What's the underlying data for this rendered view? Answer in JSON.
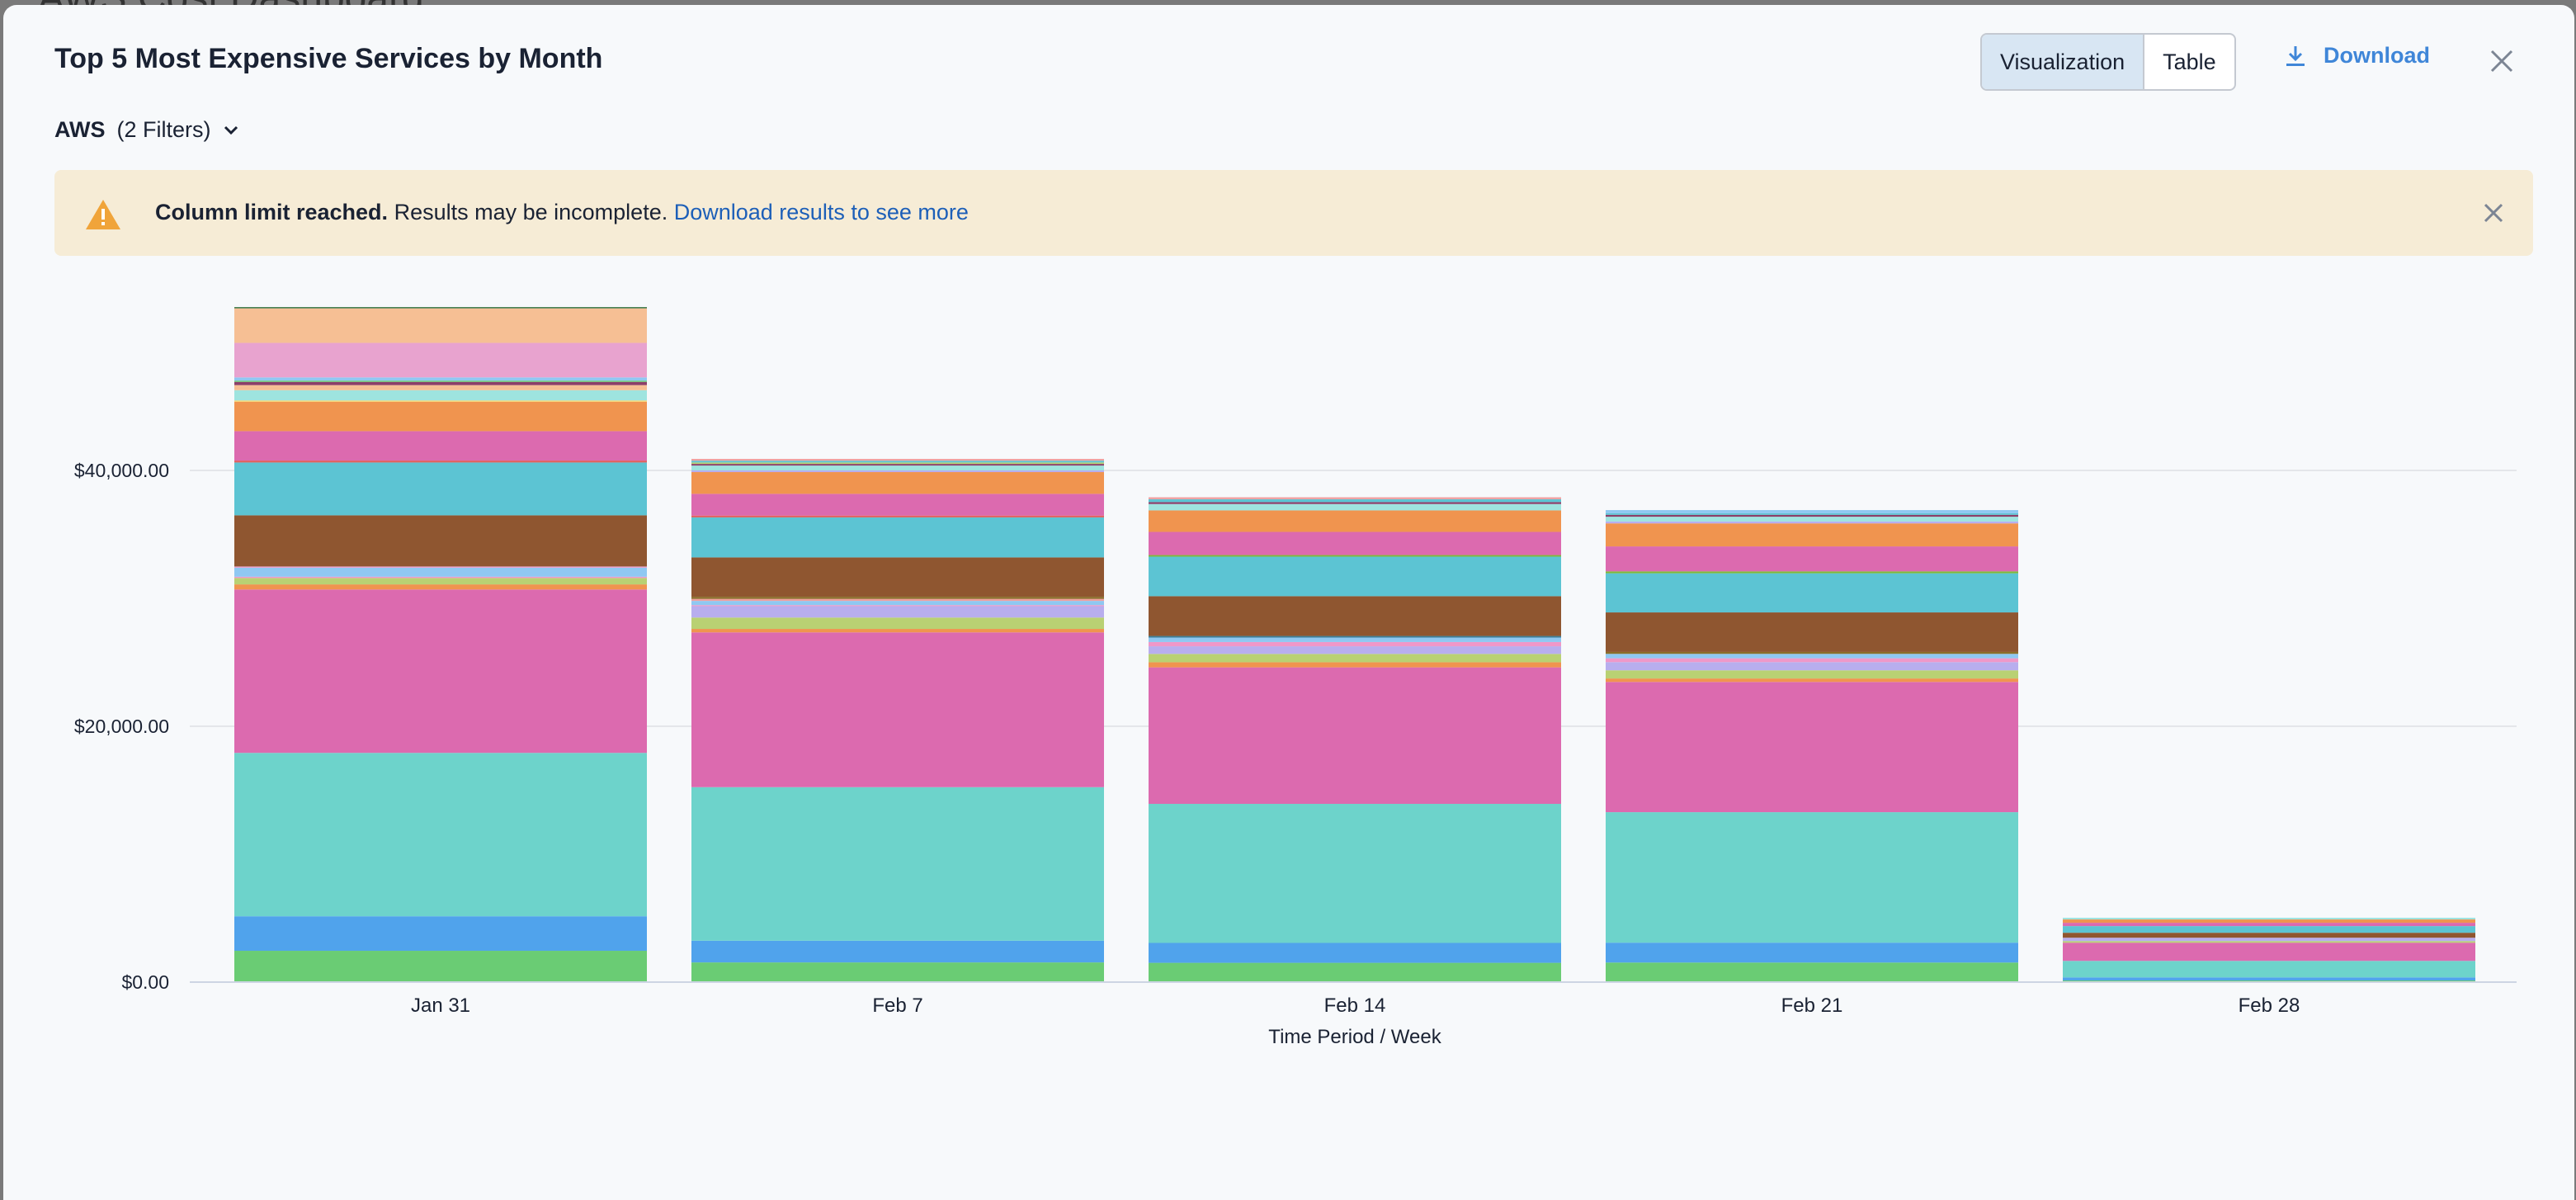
{
  "backdrop": {
    "title": "AWS Cost Dashboard"
  },
  "header": {
    "title": "Top 5 Most Expensive Services by Month",
    "view_options": [
      "Visualization",
      "Table"
    ],
    "active_view": "Visualization",
    "download_label": "Download",
    "download_icon": "download-icon",
    "close_icon": "close-icon"
  },
  "filter": {
    "source": "AWS",
    "count_label": "(2 Filters)",
    "icon": "chevron-down-icon"
  },
  "banner": {
    "icon": "warning-icon",
    "bold": "Column limit reached.",
    "text": " Results may be incomplete. ",
    "link": "Download results to see more",
    "background": "#f6ecd6"
  },
  "chart_data": {
    "type": "bar",
    "stacked": true,
    "xlabel": "Time Period / Week",
    "ylabel": "",
    "ylim": [
      0,
      55000
    ],
    "yticks": [
      "$0.00",
      "$20,000.00",
      "$40,000.00"
    ],
    "ytick_values": [
      0,
      20000,
      40000
    ],
    "grid": true,
    "legend": "none",
    "categories": [
      "Jan 31",
      "Feb 7",
      "Feb 14",
      "Feb 21",
      "Feb 28"
    ],
    "stacks": [
      {
        "category": "Jan 31",
        "segments": [
          {
            "color": "#6acc74",
            "value": 2450
          },
          {
            "color": "#50a3ec",
            "value": 2700
          },
          {
            "color": "#6dd3cb",
            "value": 12770
          },
          {
            "color": "#dc6aaf",
            "value": 12770
          },
          {
            "color": "#f0944f",
            "value": 400
          },
          {
            "color": "#b9d173",
            "value": 500
          },
          {
            "color": "#ef98c8",
            "value": 100
          },
          {
            "color": "#8fc8f2",
            "value": 700
          },
          {
            "color": "#e8a3cf",
            "value": 100
          },
          {
            "color": "#8f5630",
            "value": 4000
          },
          {
            "color": "#5cc4d3",
            "value": 4130
          },
          {
            "color": "#e0605f",
            "value": 150
          },
          {
            "color": "#dc6aaf",
            "value": 2300
          },
          {
            "color": "#f0944f",
            "value": 2300
          },
          {
            "color": "#f6d56f",
            "value": 100
          },
          {
            "color": "#9ee4df",
            "value": 800
          },
          {
            "color": "#f6bf94",
            "value": 400
          },
          {
            "color": "#8b3f6a",
            "value": 250
          },
          {
            "color": "#6acc74",
            "value": 100
          },
          {
            "color": "#8fc8f2",
            "value": 250
          },
          {
            "color": "#e8a3cf",
            "value": 2700
          },
          {
            "color": "#f6bf94",
            "value": 2700
          },
          {
            "color": "#3e7a4a",
            "value": 100
          }
        ]
      },
      {
        "category": "Feb 7",
        "segments": [
          {
            "color": "#6acc74",
            "value": 1540
          },
          {
            "color": "#50a3ec",
            "value": 1700
          },
          {
            "color": "#6dd3cb",
            "value": 12000
          },
          {
            "color": "#dc6aaf",
            "value": 12100
          },
          {
            "color": "#f0944f",
            "value": 270
          },
          {
            "color": "#b9d173",
            "value": 890
          },
          {
            "color": "#b8aeee",
            "value": 890
          },
          {
            "color": "#ef98c8",
            "value": 80
          },
          {
            "color": "#8fc8f2",
            "value": 330
          },
          {
            "color": "#ef9f9f",
            "value": 160
          },
          {
            "color": "#8a6e2a",
            "value": 160
          },
          {
            "color": "#8f5630",
            "value": 3080
          },
          {
            "color": "#5cc4d3",
            "value": 3130
          },
          {
            "color": "#e0605f",
            "value": 140
          },
          {
            "color": "#dc6aaf",
            "value": 1700
          },
          {
            "color": "#f0944f",
            "value": 1700
          },
          {
            "color": "#b8aeee",
            "value": 130
          },
          {
            "color": "#9ee4df",
            "value": 380
          },
          {
            "color": "#8b3f6a",
            "value": 130
          },
          {
            "color": "#b9d173",
            "value": 110
          },
          {
            "color": "#5cc4d3",
            "value": 140
          },
          {
            "color": "#ef9f9f",
            "value": 140
          }
        ]
      },
      {
        "category": "Feb 14",
        "segments": [
          {
            "color": "#6acc74",
            "value": 1510
          },
          {
            "color": "#50a3ec",
            "value": 1555
          },
          {
            "color": "#6dd3cb",
            "value": 10870
          },
          {
            "color": "#dc6aaf",
            "value": 10670
          },
          {
            "color": "#f0944f",
            "value": 400
          },
          {
            "color": "#b9d173",
            "value": 650
          },
          {
            "color": "#b8aeee",
            "value": 600
          },
          {
            "color": "#ef98c8",
            "value": 330
          },
          {
            "color": "#8fc8f2",
            "value": 350
          },
          {
            "color": "#3d7f96",
            "value": 125
          },
          {
            "color": "#8f5630",
            "value": 3110
          },
          {
            "color": "#5cc4d3",
            "value": 3090
          },
          {
            "color": "#7fb83a",
            "value": 125
          },
          {
            "color": "#dc6aaf",
            "value": 1810
          },
          {
            "color": "#f0944f",
            "value": 1680
          },
          {
            "color": "#9ee4df",
            "value": 500
          },
          {
            "color": "#8b3f6a",
            "value": 150
          },
          {
            "color": "#5cc4d3",
            "value": 225
          },
          {
            "color": "#ef9f9f",
            "value": 150
          }
        ]
      },
      {
        "category": "Feb 21",
        "segments": [
          {
            "color": "#6acc74",
            "value": 1530
          },
          {
            "color": "#50a3ec",
            "value": 1555
          },
          {
            "color": "#6dd3cb",
            "value": 10200
          },
          {
            "color": "#dc6aaf",
            "value": 10180
          },
          {
            "color": "#f0944f",
            "value": 270
          },
          {
            "color": "#b9d173",
            "value": 640
          },
          {
            "color": "#b8aeee",
            "value": 640
          },
          {
            "color": "#ef98c8",
            "value": 300
          },
          {
            "color": "#8fc8f2",
            "value": 345
          },
          {
            "color": "#8a6e2a",
            "value": 150
          },
          {
            "color": "#8f5630",
            "value": 3090
          },
          {
            "color": "#5cc4d3",
            "value": 3060
          },
          {
            "color": "#7fb83a",
            "value": 150
          },
          {
            "color": "#dc6aaf",
            "value": 1950
          },
          {
            "color": "#f0944f",
            "value": 1800
          },
          {
            "color": "#b8aeee",
            "value": 150
          },
          {
            "color": "#9ee4df",
            "value": 370
          },
          {
            "color": "#8b3f6a",
            "value": 150
          },
          {
            "color": "#5cc4d3",
            "value": 120
          },
          {
            "color": "#8fc8f2",
            "value": 250
          }
        ]
      },
      {
        "category": "Feb 28",
        "segments": [
          {
            "color": "#6acc74",
            "value": 130
          },
          {
            "color": "#50a3ec",
            "value": 240
          },
          {
            "color": "#6dd3cb",
            "value": 1290
          },
          {
            "color": "#dc6aaf",
            "value": 1420
          },
          {
            "color": "#b9d173",
            "value": 130
          },
          {
            "color": "#b8aeee",
            "value": 260
          },
          {
            "color": "#8f5630",
            "value": 390
          },
          {
            "color": "#5cc4d3",
            "value": 520
          },
          {
            "color": "#dc6aaf",
            "value": 260
          },
          {
            "color": "#f0944f",
            "value": 260
          },
          {
            "color": "#9ee4df",
            "value": 130
          }
        ]
      }
    ]
  }
}
